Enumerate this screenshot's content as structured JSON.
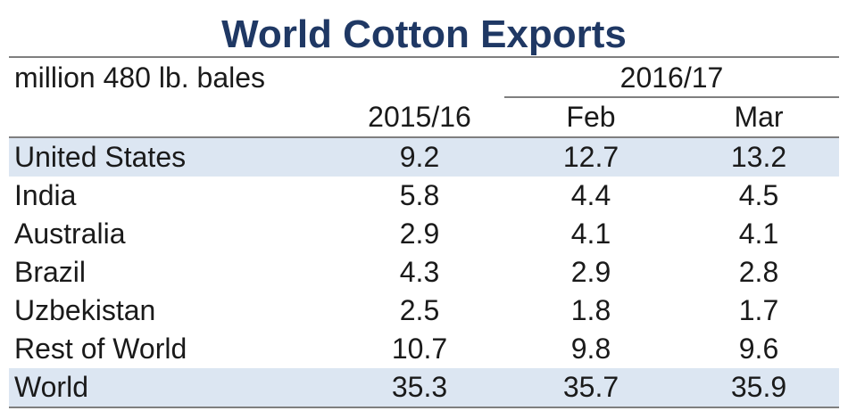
{
  "chart_data": {
    "type": "table",
    "title": "World Cotton Exports",
    "units": "million 480 lb. bales",
    "group_header": "2016/17",
    "columns": [
      "2015/16",
      "Feb",
      "Mar"
    ],
    "rows": [
      {
        "name": "United States",
        "values": [
          "9.2",
          "12.7",
          "13.2"
        ]
      },
      {
        "name": "India",
        "values": [
          "5.8",
          "4.4",
          "4.5"
        ]
      },
      {
        "name": "Australia",
        "values": [
          "2.9",
          "4.1",
          "4.1"
        ]
      },
      {
        "name": "Brazil",
        "values": [
          "4.3",
          "2.9",
          "2.8"
        ]
      },
      {
        "name": "Uzbekistan",
        "values": [
          "2.5",
          "1.8",
          "1.7"
        ]
      },
      {
        "name": "Rest of World",
        "values": [
          "10.7",
          "9.8",
          "9.6"
        ]
      },
      {
        "name": "World",
        "values": [
          "35.3",
          "35.7",
          "35.9"
        ]
      }
    ],
    "shaded_rows": [
      0,
      6
    ]
  },
  "colors": {
    "title": "#1f3864",
    "row_shade": "#dce6f2",
    "rule": "#7f7f7f"
  }
}
